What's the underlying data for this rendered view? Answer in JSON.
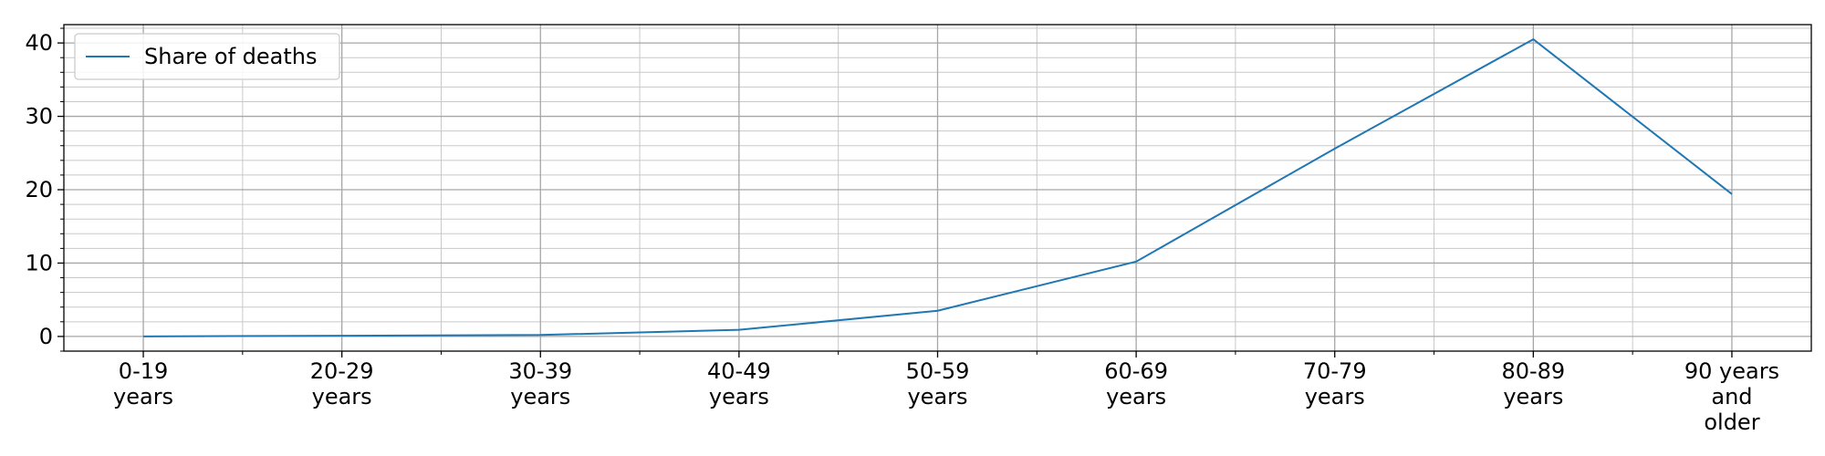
{
  "chart_data": {
    "type": "line",
    "categories": [
      [
        "0-19",
        "years"
      ],
      [
        "20-29",
        "years"
      ],
      [
        "30-39",
        "years"
      ],
      [
        "40-49",
        "years"
      ],
      [
        "50-59",
        "years"
      ],
      [
        "60-69",
        "years"
      ],
      [
        "70-79",
        "years"
      ],
      [
        "80-89",
        "years"
      ],
      [
        "90 years",
        "and",
        "older"
      ]
    ],
    "series": [
      {
        "name": "Share of deaths",
        "color": "#1f77b4",
        "values": [
          0.0,
          0.1,
          0.2,
          0.9,
          3.5,
          10.2,
          25.6,
          40.5,
          19.4
        ]
      }
    ],
    "ylim": [
      -2,
      42.5
    ],
    "yticks": [
      0,
      10,
      20,
      30,
      40
    ],
    "grid": true,
    "minor_grid": true,
    "legend_position": "upper-left",
    "xlabel": "",
    "ylabel": "",
    "title": ""
  }
}
